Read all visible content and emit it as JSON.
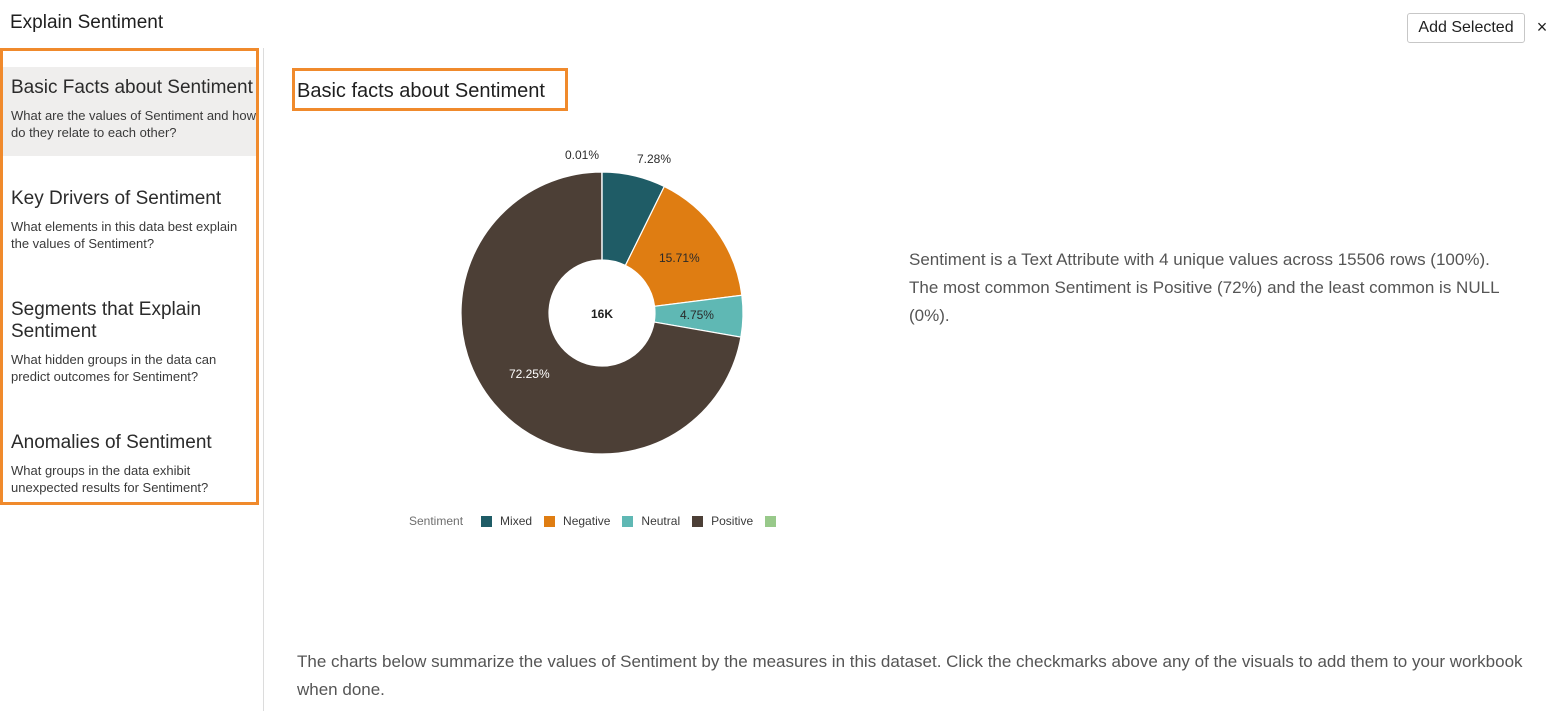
{
  "header": {
    "title": "Explain Sentiment",
    "add_selected_label": "Add Selected",
    "close_glyph": "×"
  },
  "sidebar": {
    "items": [
      {
        "title": "Basic Facts about Sentiment",
        "description": "What are the values of Sentiment and how do they relate to each other?",
        "active": true
      },
      {
        "title": "Key Drivers of Sentiment",
        "description": "What elements in this data best explain the values of Sentiment?",
        "active": false
      },
      {
        "title": "Segments that Explain Sentiment",
        "description": "What hidden groups in the data can predict outcomes for Sentiment?",
        "active": false
      },
      {
        "title": "Anomalies of Sentiment",
        "description": "What groups in the data exhibit unexpected results for Sentiment?",
        "active": false
      }
    ]
  },
  "main": {
    "section_title": "Basic facts about Sentiment",
    "summary": "Sentiment is a Text Attribute with 4 unique values across 15506 rows (100%). The most common Sentiment is Positive (72%) and the least common is NULL (0%).",
    "footer": "The charts below summarize the values of Sentiment by the measures in this dataset. Click the checkmarks above any of the visuals to add them to your workbook when done."
  },
  "chart_data": {
    "type": "pie",
    "donut": true,
    "center_label": "16K",
    "legend_title": "Sentiment",
    "legend_placement": "bottom",
    "slices": [
      {
        "name": "Mixed",
        "value": 7.28,
        "label": "7.28%",
        "color": "#1f5c66"
      },
      {
        "name": "Negative",
        "value": 15.71,
        "label": "15.71%",
        "color": "#df7d12"
      },
      {
        "name": "Neutral",
        "value": 4.75,
        "label": "4.75%",
        "color": "#5fb8b4"
      },
      {
        "name": "Positive",
        "value": 72.25,
        "label": "72.25%",
        "color": "#4c3f36"
      },
      {
        "name": "",
        "value": 0.01,
        "label": "0.01%",
        "color": "#98c98a"
      }
    ]
  },
  "colors": {
    "highlight_border": "#f08a2c",
    "active_nav_bg": "#efeeed"
  }
}
